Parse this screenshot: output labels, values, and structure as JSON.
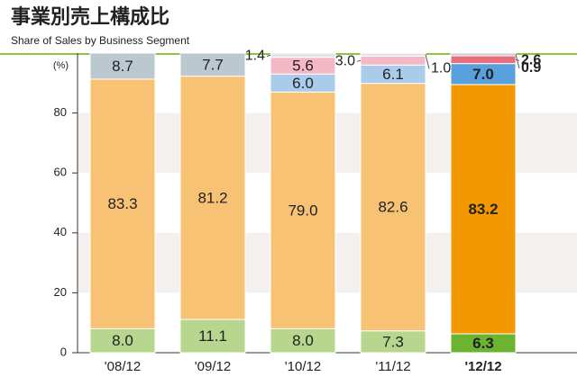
{
  "chart_data": {
    "type": "bar",
    "stacked": true,
    "title": "事業別売上構成比",
    "subtitle": "Share of Sales by Business Segment",
    "y_label": "(%)",
    "categories": [
      "'08/12",
      "'09/12",
      "'10/12",
      "'11/12",
      "'12/12"
    ],
    "ylim": [
      0,
      100
    ],
    "yticks": [
      0,
      20,
      40,
      60,
      80
    ],
    "grid": true,
    "series": [
      {
        "colors": [
          "#b7d68e",
          "#b7d68e",
          "#b7d68e",
          "#b7d68e",
          "#6ab432"
        ],
        "values": [
          8.0,
          11.1,
          8.0,
          7.3,
          6.3
        ],
        "value_labels": [
          "8.0",
          "11.1",
          "8.0",
          "7.3",
          "6.3"
        ]
      },
      {
        "colors": [
          "#f8c275",
          "#f8c275",
          "#f8c275",
          "#f8c275",
          "#f39800"
        ],
        "values": [
          83.3,
          81.2,
          79.0,
          82.6,
          83.2
        ],
        "value_labels": [
          "83.3",
          "81.2",
          "79.0",
          "82.6",
          "83.2"
        ]
      },
      {
        "colors": [
          "#aacbea",
          "#aacbea",
          "#aacbea",
          "#aacbea",
          "#5aa0dc"
        ],
        "values": [
          null,
          null,
          6.0,
          6.1,
          7.0
        ],
        "value_labels": [
          null,
          null,
          "6.0",
          "6.1",
          "7.0"
        ]
      },
      {
        "colors": [
          "#f5b8c6",
          "#f5b8c6",
          "#f5b8c6",
          "#f5b8c6",
          "#e86f7c"
        ],
        "values": [
          null,
          null,
          5.6,
          3.0,
          2.6
        ],
        "value_labels": [
          null,
          null,
          "5.6",
          "3.0",
          "2.6"
        ]
      },
      {
        "colors": [
          "#bcc8d0",
          "#bcc8d0",
          "#dfe5e9",
          "#dfe5e9",
          "#c3cbd2"
        ],
        "values": [
          8.7,
          7.7,
          1.4,
          1.0,
          0.9
        ],
        "value_labels": [
          "8.7",
          "7.7",
          "1.4",
          "1.0",
          "0.9"
        ]
      }
    ]
  }
}
